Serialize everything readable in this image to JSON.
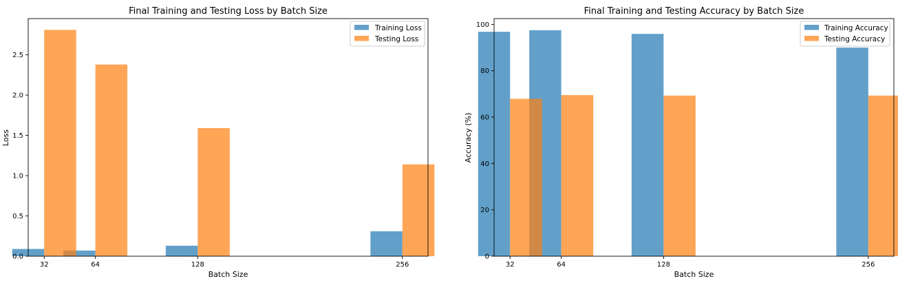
{
  "colors": {
    "training": "#1f77b4",
    "testing": "#ff7f0e"
  },
  "chart_data": [
    {
      "type": "bar",
      "title": "Final Training and Testing Loss by Batch Size",
      "xlabel": "Batch Size",
      "ylabel": "Loss",
      "x": [
        32,
        64,
        128,
        256
      ],
      "x_tick_labels": [
        "32",
        "64",
        "128",
        "256"
      ],
      "xlim": [
        22,
        272
      ],
      "ylim": [
        0,
        2.95
      ],
      "y_ticks": [
        0.0,
        0.5,
        1.0,
        1.5,
        2.0,
        2.5
      ],
      "y_tick_labels": [
        "0.0",
        "0.5",
        "1.0",
        "1.5",
        "2.0",
        "2.5"
      ],
      "bar_width": 20,
      "legend": "top-right",
      "grid": false,
      "series": [
        {
          "name": "Training Loss",
          "offset": -10,
          "values": [
            0.09,
            0.07,
            0.13,
            0.31
          ]
        },
        {
          "name": "Testing Loss",
          "offset": 10,
          "values": [
            2.81,
            2.38,
            1.59,
            1.14
          ]
        }
      ]
    },
    {
      "type": "bar",
      "title": "Final Training and Testing Accuracy by Batch Size",
      "xlabel": "Batch Size",
      "ylabel": "Accuracy (%)",
      "x": [
        32,
        64,
        128,
        256
      ],
      "x_tick_labels": [
        "32",
        "64",
        "128",
        "256"
      ],
      "xlim": [
        22,
        272
      ],
      "ylim": [
        0,
        102.5
      ],
      "y_ticks": [
        0,
        20,
        40,
        60,
        80,
        100
      ],
      "y_tick_labels": [
        "0",
        "20",
        "40",
        "60",
        "80",
        "100"
      ],
      "bar_width": 20,
      "legend": "top-right",
      "grid": false,
      "series": [
        {
          "name": "Training Accuracy",
          "offset": -10,
          "values": [
            96.8,
            97.5,
            95.9,
            90.0
          ]
        },
        {
          "name": "Testing Accuracy",
          "offset": 10,
          "values": [
            67.9,
            69.5,
            69.3,
            69.3
          ]
        }
      ]
    }
  ]
}
